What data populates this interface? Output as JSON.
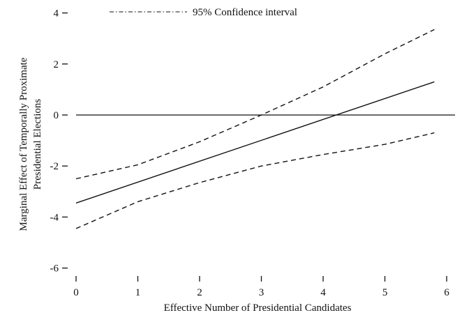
{
  "chart_data": {
    "type": "line",
    "title": "",
    "xlabel": "Effective Number of Presidential Candidates",
    "ylabel_lines": [
      "Marginal Effect of Temporally Proximate",
      "Presidential Elections"
    ],
    "xlim": [
      0,
      6
    ],
    "ylim": [
      -6,
      4
    ],
    "x_ticks": [
      0,
      1,
      2,
      3,
      4,
      5,
      6
    ],
    "x_tick_labels": [
      "0",
      "1",
      "2",
      "3",
      "4",
      "5",
      "6"
    ],
    "y_ticks": [
      4,
      2,
      0,
      -2,
      -4,
      -6
    ],
    "y_tick_labels": [
      "4",
      "2",
      "0",
      "-2",
      "-4",
      "-6"
    ],
    "grid": false,
    "legend": {
      "placement": "top-left",
      "entries": [
        "95% Confidence interval"
      ]
    },
    "reference_line": {
      "y": 0
    },
    "series": [
      {
        "style": "solid",
        "x": [
          0,
          5.8
        ],
        "y": [
          -3.45,
          1.3
        ]
      },
      {
        "style": "dashed",
        "x": [
          0,
          1,
          2,
          3,
          4,
          5,
          5.8
        ],
        "y": [
          -2.5,
          -1.95,
          -1.05,
          0.0,
          1.1,
          2.4,
          3.35
        ]
      },
      {
        "style": "dashed",
        "x": [
          0,
          1,
          2,
          3,
          4,
          5,
          5.8
        ],
        "y": [
          -4.45,
          -3.4,
          -2.65,
          -2.0,
          -1.55,
          -1.15,
          -0.7
        ]
      }
    ]
  }
}
